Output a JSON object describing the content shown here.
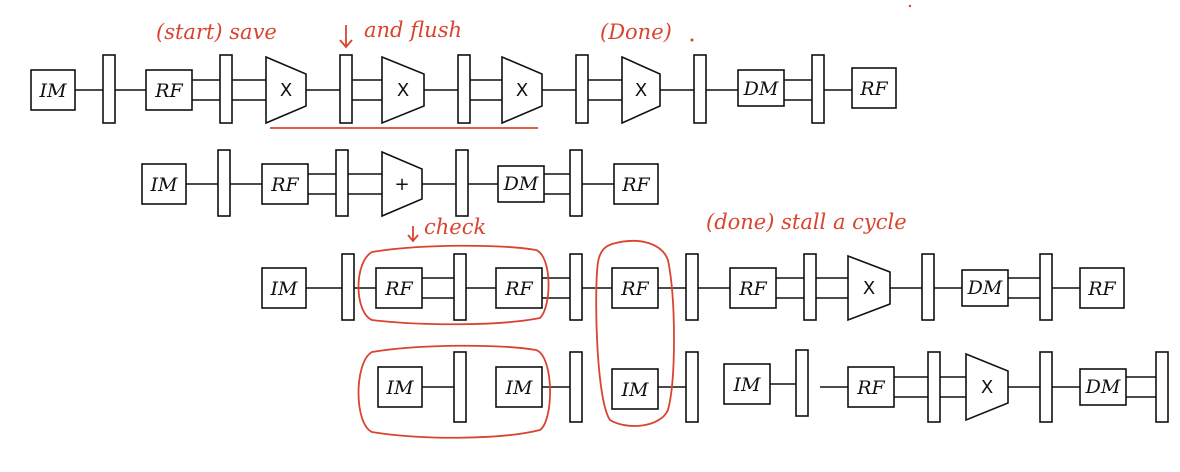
{
  "annotations": {
    "start_save": "(start) save",
    "and_flush": "and flush",
    "done_1": "(Done)",
    "check": "check",
    "done_stall": "(done) stall a cycle"
  },
  "labels": {
    "im": "IM",
    "rf": "RF",
    "dm": "DM",
    "mul": "X",
    "add": "+"
  },
  "colors": {
    "ink": "#111111",
    "annotation_red": "#d9442f"
  },
  "pipelines": [
    {
      "name": "row-1",
      "stages": [
        "IM",
        "RF",
        "X",
        "X",
        "X",
        "X",
        "DM",
        "RF"
      ]
    },
    {
      "name": "row-2",
      "stages": [
        "IM",
        "RF",
        "+",
        "DM",
        "RF"
      ]
    },
    {
      "name": "row-3",
      "stages": [
        "IM",
        "RF",
        "RF",
        "RF",
        "RF",
        "X",
        "DM",
        "RF"
      ]
    },
    {
      "name": "row-4",
      "stages": [
        "IM",
        "IM",
        "IM",
        "IM",
        "RF",
        "X",
        "DM"
      ]
    }
  ]
}
